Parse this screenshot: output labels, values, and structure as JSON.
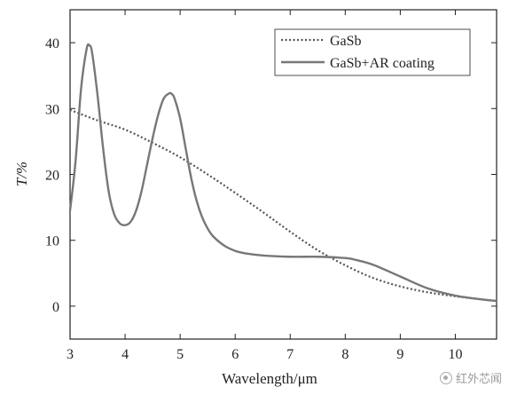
{
  "chart_data": {
    "type": "line",
    "xlabel": "Wavelength/μm",
    "ylabel": "T/%",
    "xlim": [
      3,
      10.75
    ],
    "ylim": [
      -5,
      45
    ],
    "x_ticks": [
      "3",
      "4",
      "5",
      "6",
      "7",
      "8",
      "9",
      "10"
    ],
    "y_ticks": [
      "0",
      "10",
      "20",
      "30",
      "40"
    ],
    "grid": false,
    "legend_position": "top-right",
    "series": [
      {
        "name": "GaSb",
        "style": "dotted",
        "color": "#555555",
        "x": [
          3.0,
          3.5,
          4.0,
          4.5,
          5.0,
          5.5,
          6.0,
          6.5,
          7.0,
          7.5,
          8.0,
          8.5,
          9.0,
          9.5,
          10.0,
          10.5,
          10.75
        ],
        "y": [
          29.8,
          28.2,
          26.8,
          24.8,
          22.6,
          20.0,
          17.2,
          14.3,
          11.3,
          8.5,
          6.2,
          4.3,
          3.0,
          2.1,
          1.5,
          1.0,
          0.8
        ]
      },
      {
        "name": "GaSb+AR coating",
        "style": "solid",
        "color": "#777777",
        "x": [
          3.0,
          3.1,
          3.2,
          3.3,
          3.35,
          3.4,
          3.5,
          3.6,
          3.7,
          3.8,
          3.9,
          4.0,
          4.1,
          4.2,
          4.3,
          4.4,
          4.5,
          4.6,
          4.7,
          4.8,
          4.85,
          4.9,
          5.0,
          5.1,
          5.2,
          5.3,
          5.4,
          5.5,
          5.6,
          5.8,
          6.0,
          6.2,
          6.5,
          7.0,
          7.5,
          8.0,
          8.2,
          8.5,
          9.0,
          9.5,
          10.0,
          10.5,
          10.75
        ],
        "y": [
          14.5,
          22.0,
          33.0,
          39.0,
          39.6,
          38.5,
          32.0,
          24.0,
          17.5,
          14.0,
          12.6,
          12.3,
          12.8,
          14.5,
          17.5,
          21.5,
          25.5,
          29.0,
          31.5,
          32.3,
          32.2,
          31.5,
          28.5,
          24.0,
          19.5,
          16.0,
          13.5,
          11.8,
          10.6,
          9.2,
          8.4,
          8.0,
          7.7,
          7.5,
          7.5,
          7.3,
          7.0,
          6.3,
          4.5,
          2.7,
          1.6,
          1.0,
          0.8
        ]
      }
    ]
  },
  "watermark": {
    "text": "红外芯闻",
    "icon": "wechat-channel-icon"
  }
}
